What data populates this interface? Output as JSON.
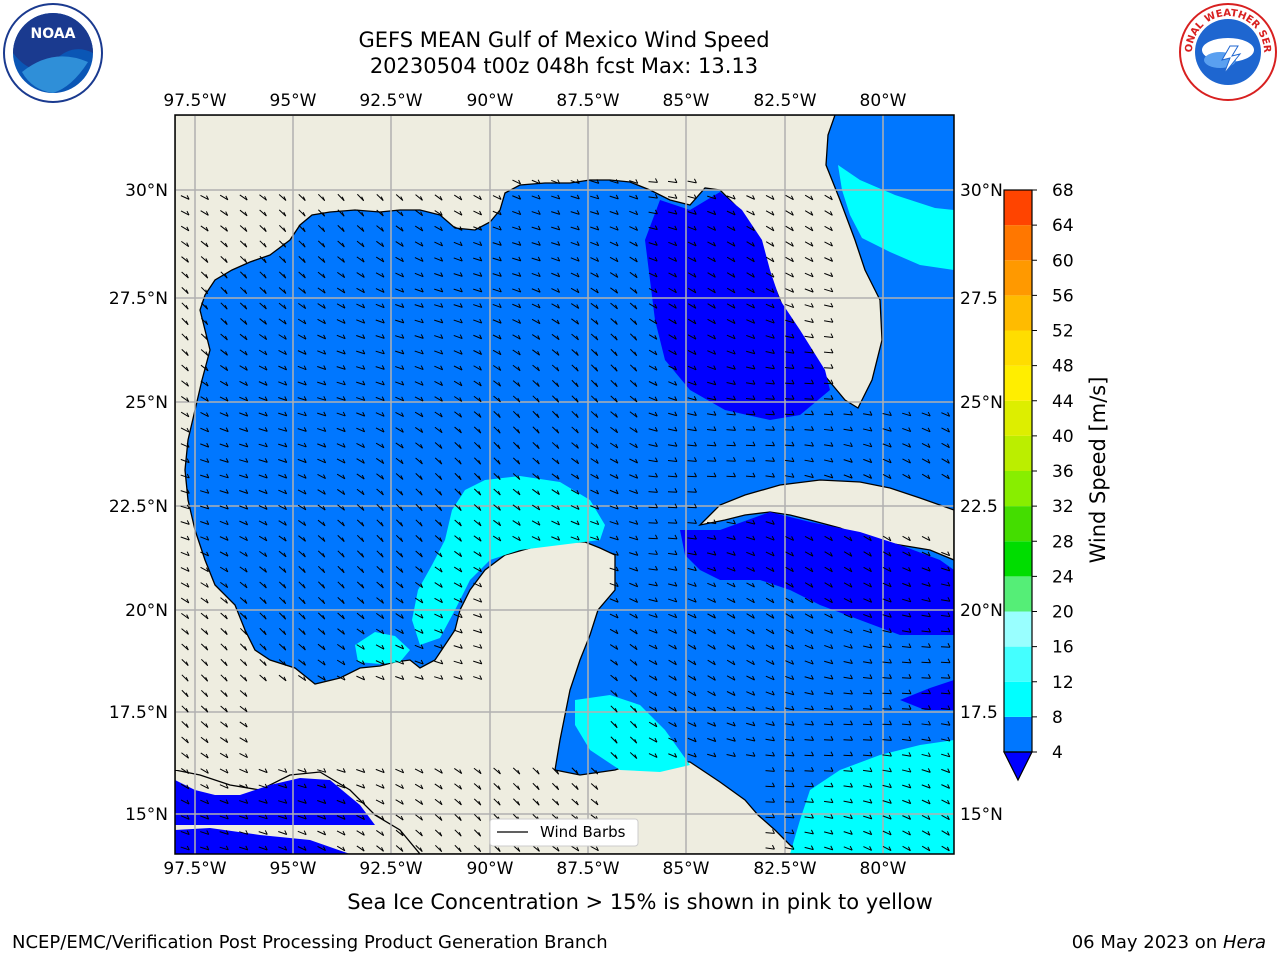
{
  "header": {
    "title_line1": "GEFS MEAN Gulf of Mexico Wind Speed",
    "title_line2": "20230504 t00z 048h fcst   Max: 13.13"
  },
  "logos": {
    "left": "noaa-logo",
    "right": "nws-logo",
    "left_text": "NOAA",
    "right_text": "NATIONAL WEATHER SERVICE"
  },
  "map": {
    "lon_labels": [
      "97.5°W",
      "95°W",
      "92.5°W",
      "90°W",
      "87.5°W",
      "85°W",
      "82.5°W",
      "80°W"
    ],
    "lat_labels_left": [
      "30°N",
      "27.5°N",
      "25°N",
      "22.5°N",
      "20°N",
      "17.5°N",
      "15°N"
    ],
    "lat_labels_right": [
      "30°N",
      "27.5",
      "25°N",
      "22.5",
      "20°N",
      "17.5",
      "15°N"
    ],
    "legend_label": "Wind Barbs",
    "colors": {
      "land": "#eeede0",
      "ocean_4_8": "#0077ff",
      "ocean_8_12": "#00ffff",
      "ocean_lt_4": "#0000ff",
      "grid": "#b0b0b0"
    }
  },
  "colorbar": {
    "label": "Wind Speed [m/s]",
    "ticks": [
      "4",
      "8",
      "12",
      "16",
      "20",
      "24",
      "28",
      "32",
      "36",
      "40",
      "44",
      "48",
      "52",
      "56",
      "60",
      "64",
      "68"
    ],
    "colors": [
      "#0077ff",
      "#00ffff",
      "#44ffff",
      "#99ffff",
      "#55ee77",
      "#00dd00",
      "#44dd00",
      "#88ee00",
      "#bbee00",
      "#ddee00",
      "#ffee00",
      "#ffdd00",
      "#ffbb00",
      "#ff9900",
      "#ff7700",
      "#ff4400",
      "#ff1100"
    ],
    "under_color": "#0000ff"
  },
  "notes": {
    "sea_ice": "Sea Ice Concentration > 15% is shown in pink to yellow"
  },
  "footer": {
    "left": "NCEP/EMC/Verification Post Processing Product Generation Branch",
    "date": "06 May 2023 on ",
    "host": "Hera"
  }
}
